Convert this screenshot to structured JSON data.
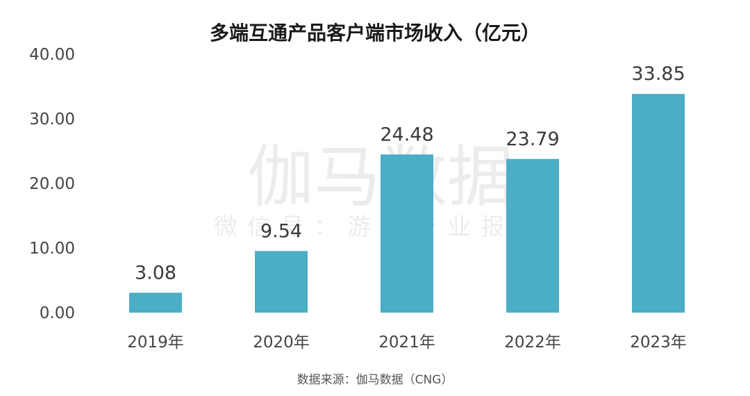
{
  "chart_data": {
    "type": "bar",
    "title": "多端互通产品客户端市场收入（亿元）",
    "categories": [
      "2019年",
      "2020年",
      "2021年",
      "2022年",
      "2023年"
    ],
    "values": [
      3.08,
      9.54,
      24.48,
      23.79,
      33.85
    ],
    "value_labels": [
      "3.08",
      "9.54",
      "24.48",
      "23.79",
      "33.85"
    ],
    "y_ticks": [
      "0.00",
      "10.00",
      "20.00",
      "30.00",
      "40.00"
    ],
    "ylim": [
      0,
      40
    ],
    "xlabel": "",
    "ylabel": "",
    "grid": false,
    "legend": "none",
    "bar_color": "#4badc6",
    "source": "数据来源：伽马数据（CNG）",
    "watermark": {
      "main": "伽马数据",
      "sub": "微信号：游戏产业报告"
    }
  }
}
